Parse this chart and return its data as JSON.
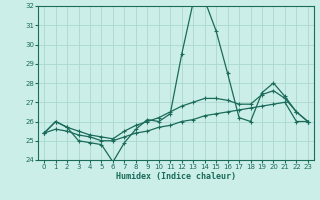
{
  "xlabel": "Humidex (Indice chaleur)",
  "xlim": [
    -0.5,
    23.5
  ],
  "ylim": [
    24,
    32
  ],
  "yticks": [
    24,
    25,
    26,
    27,
    28,
    29,
    30,
    31,
    32
  ],
  "xticks": [
    0,
    1,
    2,
    3,
    4,
    5,
    6,
    7,
    8,
    9,
    10,
    11,
    12,
    13,
    14,
    15,
    16,
    17,
    18,
    19,
    20,
    21,
    22,
    23
  ],
  "bg_color": "#cceee8",
  "grid_color": "#aad8d0",
  "line_color": "#1a6b5a",
  "lines": [
    {
      "x": [
        0,
        1,
        2,
        3,
        4,
        5,
        6,
        7,
        8,
        9,
        10,
        11,
        12,
        13,
        14,
        15,
        16,
        17,
        18,
        19,
        20,
        21,
        22,
        23
      ],
      "y": [
        25.4,
        26.0,
        25.7,
        25.0,
        24.9,
        24.8,
        23.9,
        24.9,
        25.6,
        26.1,
        26.0,
        26.4,
        29.5,
        32.2,
        32.3,
        30.7,
        28.5,
        26.2,
        26.0,
        27.5,
        28.0,
        27.3,
        26.5,
        26.0
      ]
    },
    {
      "x": [
        0,
        1,
        2,
        3,
        4,
        5,
        6,
        7,
        8,
        9,
        10,
        11,
        12,
        13,
        14,
        15,
        16,
        17,
        18,
        19,
        20,
        21,
        22,
        23
      ],
      "y": [
        25.4,
        26.0,
        25.7,
        25.5,
        25.3,
        25.2,
        25.1,
        25.5,
        25.8,
        26.0,
        26.2,
        26.5,
        26.8,
        27.0,
        27.2,
        27.2,
        27.1,
        26.9,
        26.9,
        27.4,
        27.6,
        27.2,
        26.5,
        26.0
      ]
    },
    {
      "x": [
        0,
        1,
        2,
        3,
        4,
        5,
        6,
        7,
        8,
        9,
        10,
        11,
        12,
        13,
        14,
        15,
        16,
        17,
        18,
        19,
        20,
        21,
        22,
        23
      ],
      "y": [
        25.4,
        25.6,
        25.5,
        25.3,
        25.2,
        25.0,
        25.0,
        25.2,
        25.4,
        25.5,
        25.7,
        25.8,
        26.0,
        26.1,
        26.3,
        26.4,
        26.5,
        26.6,
        26.7,
        26.8,
        26.9,
        27.0,
        26.0,
        26.0
      ]
    }
  ]
}
